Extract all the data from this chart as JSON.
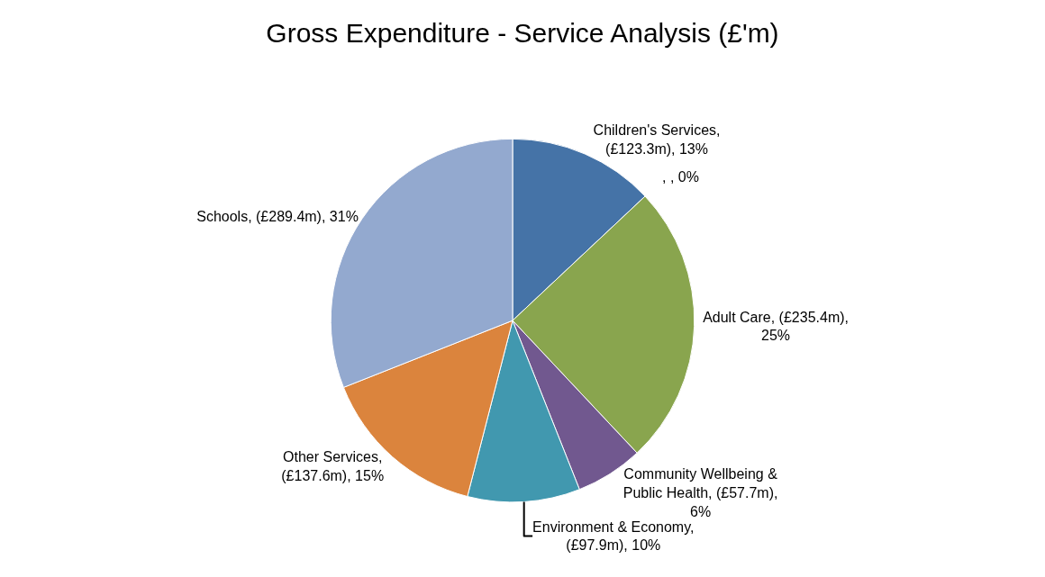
{
  "chart_data": {
    "type": "pie",
    "title": "Gross Expenditure - Service Analysis (£'m)",
    "categories": [
      "Children's Services",
      "Adult Care",
      "Community Wellbeing & Public Health",
      "Environment & Economy",
      "Other Services",
      "Schools"
    ],
    "values": [
      13,
      25,
      6,
      10,
      15,
      31
    ],
    "colors": [
      "#4573a7",
      "#89a54e",
      "#71588f",
      "#4198af",
      "#db843d",
      "#93a9cf"
    ],
    "value_labels": [
      ", (£123.3m), 13%",
      ", (£235.4m), 25%",
      ", (£57.7m), 6%",
      ", (£97.9m), 10%",
      ", (£137.6m), 15%",
      ", (£289.4m), 31%"
    ],
    "annotations": [
      ", , 0%"
    ],
    "legend": false
  }
}
